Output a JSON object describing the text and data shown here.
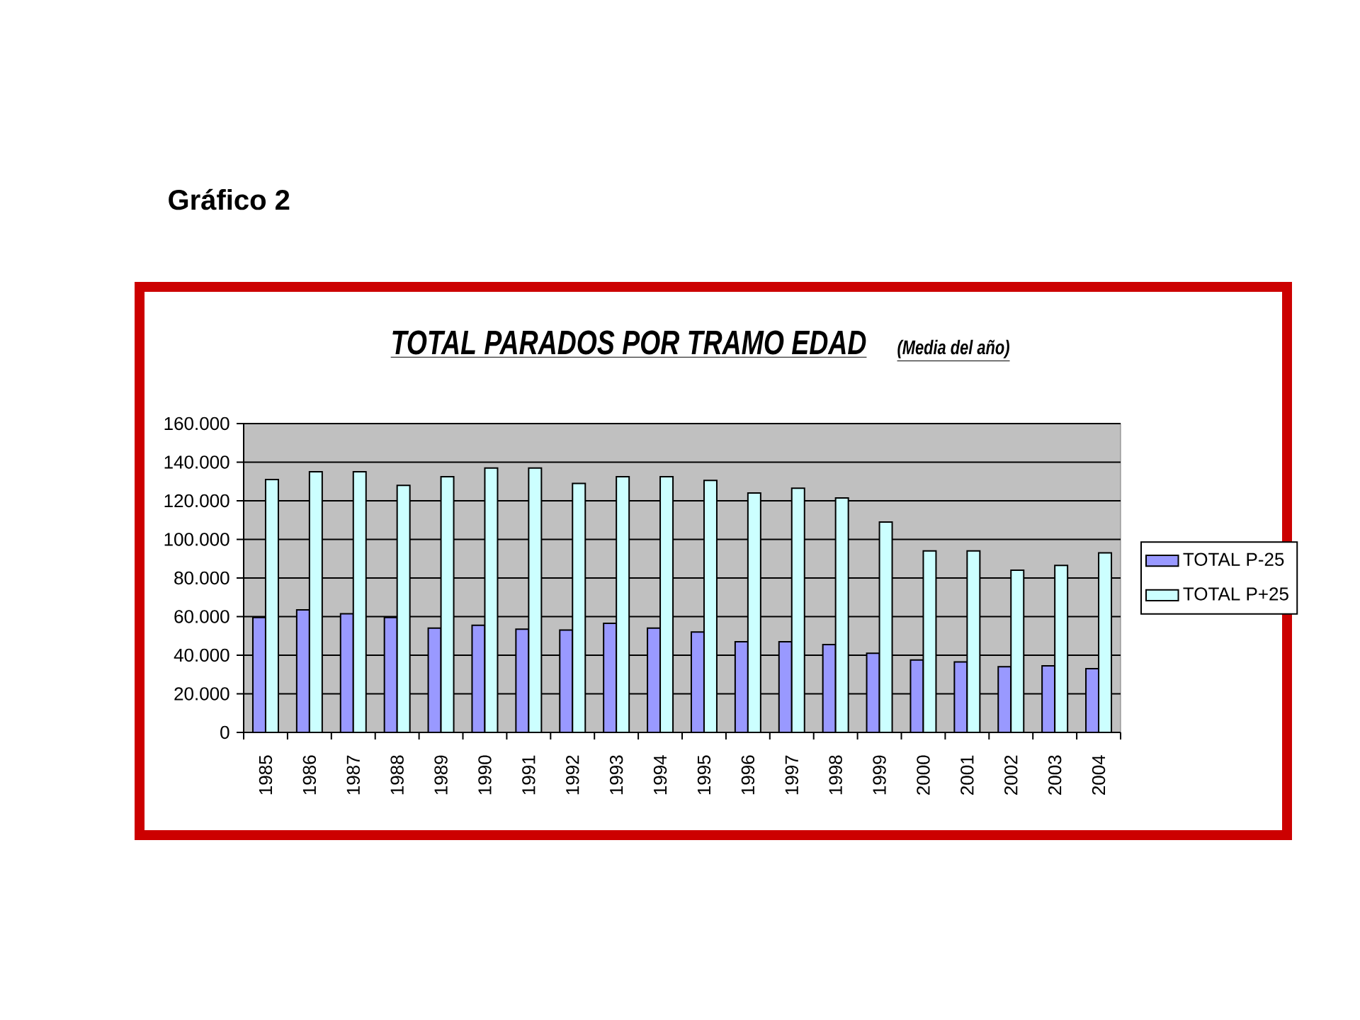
{
  "chart_data": {
    "type": "bar",
    "title": "TOTAL PARADOS POR TRAMO EDAD",
    "subtitle": "(Media del año)",
    "annotations": [
      "Gráfico 2"
    ],
    "categories": [
      "1985",
      "1986",
      "1987",
      "1988",
      "1989",
      "1990",
      "1991",
      "1992",
      "1993",
      "1994",
      "1995",
      "1996",
      "1997",
      "1998",
      "1999",
      "2000",
      "2001",
      "2002",
      "2003",
      "2004"
    ],
    "series": [
      {
        "name": "TOTAL P-25",
        "color": "#9999ff",
        "values": [
          59500,
          63500,
          61500,
          59500,
          54000,
          55500,
          53500,
          53000,
          56500,
          54000,
          52000,
          47000,
          47000,
          45500,
          41000,
          37500,
          36500,
          34000,
          34500,
          33000
        ]
      },
      {
        "name": "TOTAL P+25",
        "color": "#ccffff",
        "values": [
          131000,
          135000,
          135000,
          128000,
          132500,
          137000,
          137000,
          129000,
          132500,
          132500,
          130500,
          124000,
          126500,
          121500,
          109000,
          94000,
          94000,
          84000,
          86500,
          93000
        ]
      }
    ],
    "ylim": [
      0,
      160000
    ],
    "yticks": [
      0,
      {
        "value": 20000,
        "label": "20.000"
      },
      {
        "value": 40000,
        "label": "40.000"
      },
      {
        "value": 60000,
        "label": "60.000"
      },
      {
        "value": 80000,
        "label": "80.000"
      },
      {
        "value": 100000,
        "label": "100.000"
      },
      {
        "value": 120000,
        "label": "120.000"
      },
      {
        "value": 140000,
        "label": "140.000"
      },
      {
        "value": 160000,
        "label": "160.000"
      }
    ],
    "grid": "y",
    "legend": "right"
  }
}
